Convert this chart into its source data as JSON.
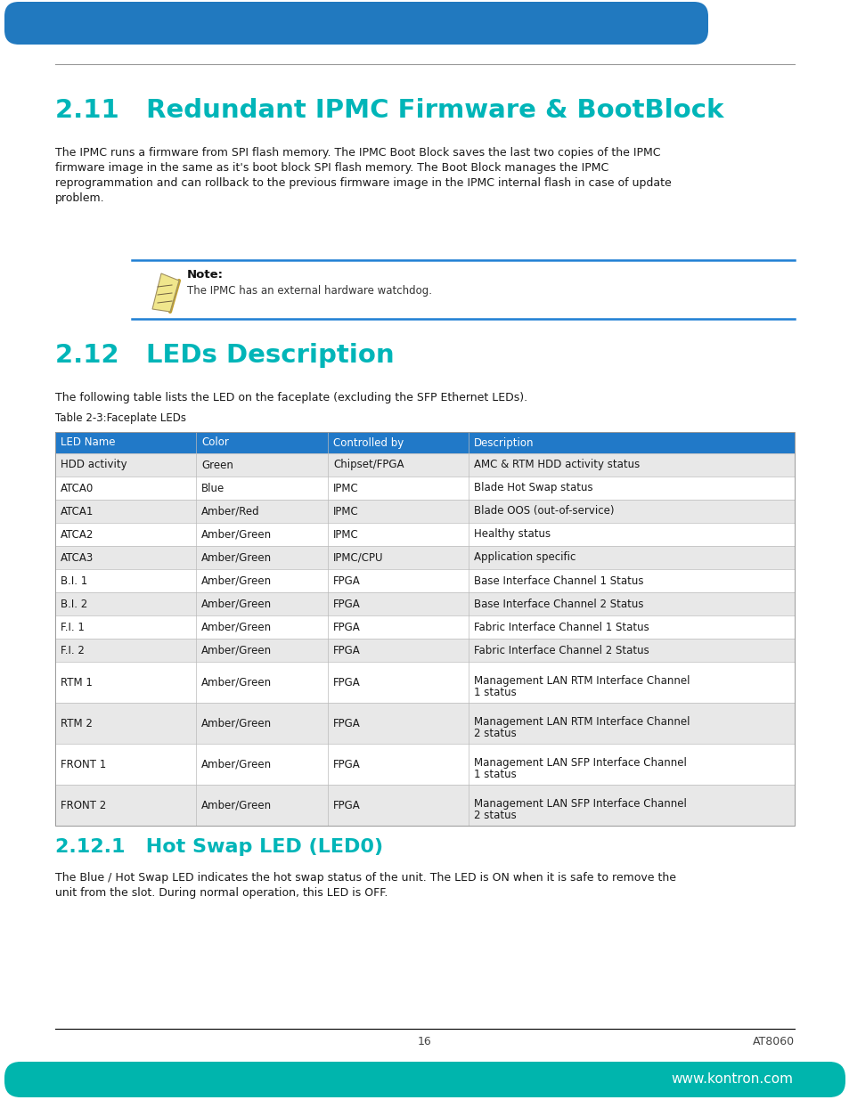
{
  "page_bg": "#ffffff",
  "header_color": "#2179BF",
  "teal_color": "#1E90FF",
  "note_line_color": "#1E7FD4",
  "section_title_color": "#00B5B8",
  "section_211_title": "2.11   Redundant IPMC Firmware & BootBlock",
  "section_211_body1": "The IPMC runs a firmware from SPI flash memory. The IPMC Boot Block saves the last two copies of the IPMC",
  "section_211_body2": "firmware image in the same as it's boot block SPI flash memory. The Boot Block manages the IPMC",
  "section_211_body3": "reprogrammation and can rollback to the previous firmware image in the IPMC internal flash in case of update",
  "section_211_body4": "problem.",
  "note_label": "Note:",
  "note_text": "The IPMC has an external hardware watchdog.",
  "section_212_title": "2.12   LEDs Description",
  "section_212_body": "The following table lists the LED on the faceplate (excluding the SFP Ethernet LEDs).",
  "table_caption": "Table 2-3:Faceplate LEDs",
  "table_header": [
    "LED Name",
    "Color",
    "Controlled by",
    "Description"
  ],
  "table_header_bg": "#2179C8",
  "table_header_text": "#ffffff",
  "table_row_bg_even": "#e8e8e8",
  "table_row_bg_odd": "#ffffff",
  "table_rows": [
    [
      "HDD activity",
      "Green",
      "Chipset/FPGA",
      "AMC & RTM HDD activity status"
    ],
    [
      "ATCA0",
      "Blue",
      "IPMC",
      "Blade Hot Swap status"
    ],
    [
      "ATCA1",
      "Amber/Red",
      "IPMC",
      "Blade OOS (out-of-service)"
    ],
    [
      "ATCA2",
      "Amber/Green",
      "IPMC",
      "Healthy status"
    ],
    [
      "ATCA3",
      "Amber/Green",
      "IPMC/CPU",
      "Application specific"
    ],
    [
      "B.I. 1",
      "Amber/Green",
      "FPGA",
      "Base Interface Channel 1 Status"
    ],
    [
      "B.I. 2",
      "Amber/Green",
      "FPGA",
      "Base Interface Channel 2 Status"
    ],
    [
      "F.I. 1",
      "Amber/Green",
      "FPGA",
      "Fabric Interface Channel 1 Status"
    ],
    [
      "F.I. 2",
      "Amber/Green",
      "FPGA",
      "Fabric Interface Channel 2 Status"
    ],
    [
      "RTM 1",
      "Amber/Green",
      "FPGA",
      "Management LAN RTM Interface Channel\n1 status"
    ],
    [
      "RTM 2",
      "Amber/Green",
      "FPGA",
      "Management LAN RTM Interface Channel\n2 status"
    ],
    [
      "FRONT 1",
      "Amber/Green",
      "FPGA",
      "Management LAN SFP Interface Channel\n1 status"
    ],
    [
      "FRONT 2",
      "Amber/Green",
      "FPGA",
      "Management LAN SFP Interface Channel\n2 status"
    ]
  ],
  "section_2121_title": "2.12.1   Hot Swap LED (LED0)",
  "section_2121_body1": "The Blue / Hot Swap LED indicates the hot swap status of the unit. The LED is ON when it is safe to remove the",
  "section_2121_body2": "unit from the slot. During normal operation, this LED is OFF.",
  "footer_line_color": "#000000",
  "footer_page": "16",
  "footer_right": "AT8060",
  "footer_bg": "#00B5AD",
  "footer_text": "www.kontron.com"
}
